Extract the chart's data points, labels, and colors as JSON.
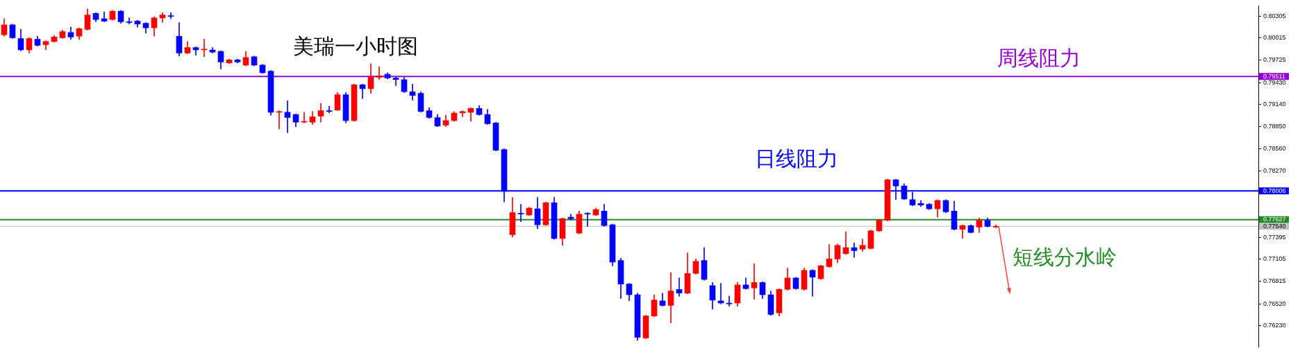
{
  "chart_data": {
    "type": "candlestick",
    "title": "美瑞一小时图",
    "categories": [
      null,
      null,
      null,
      null,
      null,
      null,
      null,
      null,
      null,
      null,
      null,
      null,
      null,
      null,
      null,
      null,
      null,
      null,
      null,
      null,
      null,
      null,
      null,
      null,
      null,
      null,
      null,
      null,
      null,
      null,
      null,
      null,
      null,
      null,
      null,
      null,
      null,
      null,
      null,
      null,
      null,
      null,
      null,
      null,
      null,
      null,
      null,
      null,
      null,
      null,
      null,
      null,
      null,
      null,
      null,
      null,
      null,
      null,
      null,
      null,
      null,
      null,
      null,
      null,
      null,
      null,
      null,
      null,
      null,
      null,
      null,
      null,
      null,
      null,
      null,
      null,
      null,
      null,
      null,
      null,
      null,
      null,
      null,
      null,
      null,
      null,
      null,
      null,
      null,
      null,
      null,
      null,
      null,
      null,
      null,
      null,
      null,
      null,
      null,
      null,
      null,
      null,
      null,
      null,
      null,
      null,
      null,
      null,
      null,
      null,
      null,
      null,
      null,
      null,
      null,
      null,
      null,
      null,
      null,
      null,
      null,
      null,
      null,
      null,
      null,
      null,
      null,
      null,
      null,
      null,
      null,
      null,
      null,
      null,
      null,
      null,
      null,
      null,
      null,
      null,
      null,
      null,
      null,
      null,
      null,
      null,
      null,
      null,
      null,
      null,
      null
    ],
    "ohlc": [
      [
        0.8006,
        0.8027,
        0.8004,
        0.8019
      ],
      [
        0.8019,
        0.802,
        0.8001,
        0.8002
      ],
      [
        0.8001,
        0.8013,
        0.7985,
        0.7986
      ],
      [
        0.7986,
        0.8002,
        0.7982,
        0.8001
      ],
      [
        0.8,
        0.8004,
        0.7991,
        0.7992
      ],
      [
        0.7993,
        0.7998,
        0.7986,
        0.7997
      ],
      [
        0.7997,
        0.8005,
        0.7996,
        0.8003
      ],
      [
        0.8002,
        0.8012,
        0.8001,
        0.801
      ],
      [
        0.8009,
        0.8016,
        0.8,
        0.8003
      ],
      [
        0.8004,
        0.8015,
        0.8,
        0.8014
      ],
      [
        0.8013,
        0.804,
        0.8012,
        0.8032
      ],
      [
        0.8034,
        0.8035,
        0.8023,
        0.8026
      ],
      [
        0.8027,
        0.8036,
        0.8023,
        0.8024
      ],
      [
        0.8026,
        0.8038,
        0.8025,
        0.8037
      ],
      [
        0.8037,
        0.8038,
        0.8021,
        0.8023
      ],
      [
        0.8023,
        0.8028,
        0.802,
        0.8022
      ],
      [
        0.8024,
        0.8025,
        0.8016,
        0.802
      ],
      [
        0.8021,
        0.8022,
        0.8008,
        0.8015
      ],
      [
        0.8015,
        0.803,
        0.8004,
        0.8028
      ],
      [
        0.8028,
        0.8035,
        0.8022,
        0.8032
      ],
      [
        0.8031,
        0.8035,
        0.8027,
        0.803
      ],
      [
        0.8004,
        0.8022,
        0.7978,
        0.7982
      ],
      [
        0.7982,
        0.7997,
        0.7981,
        0.7989
      ],
      [
        0.7989,
        0.799,
        0.7979,
        0.7986
      ],
      [
        0.7986,
        0.8,
        0.7977,
        0.7987
      ],
      [
        0.7986,
        0.7989,
        0.7982,
        0.7983
      ],
      [
        0.7984,
        0.7985,
        0.7961,
        0.797
      ],
      [
        0.7969,
        0.7974,
        0.7968,
        0.7973
      ],
      [
        0.7973,
        0.7974,
        0.7969,
        0.797
      ],
      [
        0.7966,
        0.7984,
        0.7965,
        0.7976
      ],
      [
        0.7977,
        0.7978,
        0.7965,
        0.7966
      ],
      [
        0.7966,
        0.7967,
        0.7955,
        0.7956
      ],
      [
        0.7958,
        0.7959,
        0.79,
        0.7904
      ],
      [
        0.7904,
        0.7906,
        0.7882,
        0.7905
      ],
      [
        0.7904,
        0.7919,
        0.7877,
        0.7897
      ],
      [
        0.7901,
        0.7902,
        0.7885,
        0.7891
      ],
      [
        0.7891,
        0.7904,
        0.789,
        0.7892
      ],
      [
        0.7891,
        0.7905,
        0.7888,
        0.7898
      ],
      [
        0.7899,
        0.7916,
        0.7891,
        0.7906
      ],
      [
        0.7906,
        0.7912,
        0.7903,
        0.7905
      ],
      [
        0.7907,
        0.793,
        0.7906,
        0.7927
      ],
      [
        0.7927,
        0.793,
        0.789,
        0.7893
      ],
      [
        0.7893,
        0.7941,
        0.7892,
        0.794
      ],
      [
        0.794,
        0.7941,
        0.7922,
        0.7935
      ],
      [
        0.7935,
        0.7968,
        0.7929,
        0.795
      ],
      [
        0.795,
        0.7964,
        0.7947,
        0.7952
      ],
      [
        0.7954,
        0.7956,
        0.7948,
        0.7949
      ],
      [
        0.7949,
        0.795,
        0.7939,
        0.7947
      ],
      [
        0.7947,
        0.795,
        0.793,
        0.7931
      ],
      [
        0.7931,
        0.7941,
        0.792,
        0.7926
      ],
      [
        0.7929,
        0.7931,
        0.7904,
        0.7905
      ],
      [
        0.7906,
        0.791,
        0.7896,
        0.7897
      ],
      [
        0.7897,
        0.7901,
        0.7885,
        0.7886
      ],
      [
        0.7887,
        0.79,
        0.7885,
        0.7893
      ],
      [
        0.7893,
        0.7905,
        0.7892,
        0.7903
      ],
      [
        0.7903,
        0.7906,
        0.7898,
        0.7905
      ],
      [
        0.7904,
        0.791,
        0.7892,
        0.7909
      ],
      [
        0.7909,
        0.7913,
        0.79,
        0.7901
      ],
      [
        0.7901,
        0.7908,
        0.7888,
        0.7889
      ],
      [
        0.789,
        0.7891,
        0.7853,
        0.7854
      ],
      [
        0.7855,
        0.7856,
        0.7786,
        0.78
      ],
      [
        0.7743,
        0.7792,
        0.774,
        0.7772
      ],
      [
        0.7771,
        0.7783,
        0.776,
        0.777
      ],
      [
        0.7769,
        0.7779,
        0.7768,
        0.7778
      ],
      [
        0.7777,
        0.7792,
        0.7751,
        0.7756
      ],
      [
        0.7756,
        0.7786,
        0.7755,
        0.7785
      ],
      [
        0.7785,
        0.7792,
        0.7737,
        0.7738
      ],
      [
        0.7738,
        0.7765,
        0.7729,
        0.7764
      ],
      [
        0.7766,
        0.777,
        0.7762,
        0.7764
      ],
      [
        0.7745,
        0.7774,
        0.7744,
        0.777
      ],
      [
        0.7771,
        0.7772,
        0.7754,
        0.777
      ],
      [
        0.7769,
        0.7778,
        0.7768,
        0.7776
      ],
      [
        0.7774,
        0.7783,
        0.7754,
        0.7755
      ],
      [
        0.7756,
        0.7757,
        0.7702,
        0.7707
      ],
      [
        0.7709,
        0.7712,
        0.7659,
        0.7678
      ],
      [
        0.7678,
        0.7679,
        0.7656,
        0.7664
      ],
      [
        0.7664,
        0.7666,
        0.7604,
        0.7608
      ],
      [
        0.7607,
        0.7637,
        0.7606,
        0.7636
      ],
      [
        0.7636,
        0.7664,
        0.7635,
        0.7657
      ],
      [
        0.7656,
        0.7666,
        0.7649,
        0.765
      ],
      [
        0.765,
        0.7693,
        0.7627,
        0.7669
      ],
      [
        0.7671,
        0.7686,
        0.7662,
        0.7666
      ],
      [
        0.7666,
        0.7719,
        0.7665,
        0.7692
      ],
      [
        0.7692,
        0.7711,
        0.7691,
        0.7708
      ],
      [
        0.7709,
        0.7726,
        0.7683,
        0.7684
      ],
      [
        0.7676,
        0.768,
        0.7645,
        0.7657
      ],
      [
        0.7656,
        0.7679,
        0.7652,
        0.7653
      ],
      [
        0.7653,
        0.7662,
        0.7649,
        0.7652
      ],
      [
        0.7653,
        0.768,
        0.7649,
        0.7677
      ],
      [
        0.7677,
        0.7686,
        0.7671,
        0.7672
      ],
      [
        0.7673,
        0.7705,
        0.7658,
        0.768
      ],
      [
        0.768,
        0.7681,
        0.7659,
        0.7664
      ],
      [
        0.7664,
        0.7669,
        0.7637,
        0.7638
      ],
      [
        0.764,
        0.7672,
        0.7636,
        0.7671
      ],
      [
        0.7671,
        0.7699,
        0.767,
        0.7686
      ],
      [
        0.7686,
        0.7687,
        0.7671,
        0.7672
      ],
      [
        0.7671,
        0.7699,
        0.767,
        0.7696
      ],
      [
        0.7696,
        0.7697,
        0.7662,
        0.7687
      ],
      [
        0.7685,
        0.7703,
        0.7684,
        0.7702
      ],
      [
        0.7701,
        0.773,
        0.77,
        0.7711
      ],
      [
        0.7711,
        0.7731,
        0.7706,
        0.7729
      ],
      [
        0.7718,
        0.7747,
        0.7717,
        0.7726
      ],
      [
        0.7726,
        0.7732,
        0.7713,
        0.7722
      ],
      [
        0.7724,
        0.7737,
        0.7721,
        0.7729
      ],
      [
        0.7725,
        0.7749,
        0.7724,
        0.7748
      ],
      [
        0.7748,
        0.7763,
        0.7747,
        0.7762
      ],
      [
        0.7762,
        0.7816,
        0.7761,
        0.7815
      ],
      [
        0.7815,
        0.7816,
        0.7789,
        0.7807
      ],
      [
        0.7807,
        0.781,
        0.7789,
        0.779
      ],
      [
        0.7789,
        0.7799,
        0.7781,
        0.7782
      ],
      [
        0.7784,
        0.7788,
        0.778,
        0.7782
      ],
      [
        0.7783,
        0.7784,
        0.7776,
        0.7777
      ],
      [
        0.7777,
        0.7789,
        0.7766,
        0.7788
      ],
      [
        0.7788,
        0.7789,
        0.7772,
        0.7773
      ],
      [
        0.7774,
        0.7787,
        0.7749,
        0.775
      ],
      [
        0.775,
        0.7756,
        0.7738,
        0.7755
      ],
      [
        0.7755,
        0.7756,
        0.7745,
        0.7746
      ],
      [
        0.7753,
        0.7765,
        0.7746,
        0.7762
      ],
      [
        0.7762,
        0.7765,
        0.7753,
        0.7754
      ],
      [
        0.7753,
        0.7756,
        0.7752,
        0.7754
      ],
      null,
      null,
      null,
      null,
      null,
      null,
      null,
      null,
      null,
      null,
      null,
      null,
      null,
      null,
      null,
      null,
      null,
      null,
      null,
      null,
      null,
      null,
      null,
      null,
      null,
      null,
      null,
      null,
      null,
      null,
      null
    ],
    "colors": [
      "#ff0000",
      "#0000ff",
      "#0000ff",
      "#ff0000",
      "#0000ff",
      "#ff0000",
      "#ff0000",
      "#ff0000",
      "#0000ff",
      "#ff0000",
      "#ff0000",
      "#0000ff",
      "#0000ff",
      "#ff0000",
      "#0000ff",
      "#0000ff",
      "#0000ff",
      "#0000ff",
      "#ff0000",
      "#ff0000",
      "#0000ff",
      "#0000ff",
      "#ff0000",
      "#0000ff",
      "#ff0000",
      "#0000ff",
      "#0000ff",
      "#ff0000",
      "#0000ff",
      "#ff0000",
      "#0000ff",
      "#0000ff",
      "#0000ff",
      "#ff0000",
      "#0000ff",
      "#0000ff",
      "#ff0000",
      "#ff0000",
      "#ff0000",
      "#0000ff",
      "#ff0000",
      "#0000ff",
      "#ff0000",
      "#0000ff",
      "#ff0000",
      "#ff0000",
      "#0000ff",
      "#0000ff",
      "#0000ff",
      "#0000ff",
      "#0000ff",
      "#0000ff",
      "#0000ff",
      "#ff0000",
      "#ff0000",
      "#ff0000",
      "#ff0000",
      "#0000ff",
      "#0000ff",
      "#0000ff",
      "#0000ff",
      "#ff0000",
      "#0000ff",
      "#ff0000",
      "#0000ff",
      "#ff0000",
      "#0000ff",
      "#ff0000",
      "#0000ff",
      "#ff0000",
      "#0000ff",
      "#ff0000",
      "#0000ff",
      "#0000ff",
      "#0000ff",
      "#0000ff",
      "#0000ff",
      "#ff0000",
      "#ff0000",
      "#0000ff",
      "#ff0000",
      "#0000ff",
      "#ff0000",
      "#ff0000",
      "#0000ff",
      "#0000ff",
      "#0000ff",
      "#0000ff",
      "#ff0000",
      "#0000ff",
      "#ff0000",
      "#0000ff",
      "#0000ff",
      "#ff0000",
      "#ff0000",
      "#0000ff",
      "#ff0000",
      "#0000ff",
      "#ff0000",
      "#ff0000",
      "#ff0000",
      "#ff0000",
      "#0000ff",
      "#ff0000",
      "#ff0000",
      "#ff0000",
      "#ff0000",
      "#0000ff",
      "#0000ff",
      "#0000ff",
      "#0000ff",
      "#0000ff",
      "#ff0000",
      "#0000ff",
      "#0000ff",
      "#ff0000",
      "#0000ff",
      "#ff0000",
      "#0000ff",
      "#ff0000",
      null,
      null,
      null,
      null,
      null,
      null,
      null,
      null,
      null,
      null,
      null,
      null,
      null,
      null,
      null,
      null,
      null,
      null,
      null,
      null,
      null,
      null,
      null,
      null,
      null,
      null,
      null,
      null,
      null,
      null,
      null
    ],
    "ylim": [
      0.7595,
      0.8044
    ],
    "yticks": [
      0.80305,
      0.80015,
      0.79725,
      0.79511,
      {
        "value": 0.7943,
        "label": "0.79430"
      },
      {
        "value": 0.7914,
        "label": "0.79140"
      },
      {
        "value": 0.7885,
        "label": "0.78850"
      },
      {
        "value": 0.7856,
        "label": "0.78560"
      },
      {
        "value": 0.7827,
        "label": "0.78270"
      },
      0.78006,
      0.77627,
      {
        "value": 0.7754,
        "label": "0.77540"
      },
      0.77395,
      0.77105,
      0.76815,
      {
        "value": 0.7652,
        "label": "0.76520"
      },
      {
        "value": 0.7623,
        "label": "0.76230"
      }
    ],
    "ref_lines": [
      {
        "axis": "y",
        "value": 0.79511,
        "label": "周线阻力",
        "color": "#9400d3"
      },
      {
        "axis": "y",
        "value": 0.78006,
        "label": "日线阻力",
        "color": "#0000ff"
      },
      {
        "axis": "y",
        "value": 0.77627,
        "label": "短线分水岭",
        "color": "#228b22"
      },
      {
        "axis": "y",
        "value": 0.7754,
        "label": null,
        "color": "#c0c0c0"
      }
    ]
  }
}
